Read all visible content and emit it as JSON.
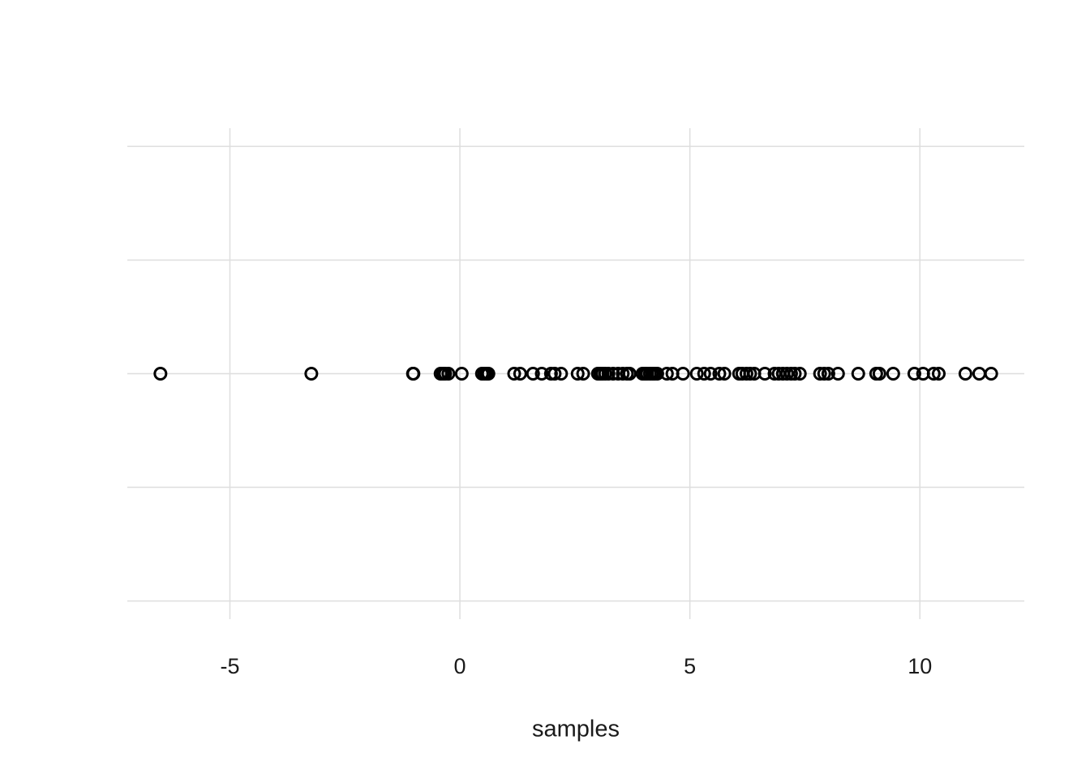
{
  "chart_data": {
    "type": "strip",
    "x_label": "samples",
    "values": [
      -6.51,
      -3.23,
      -1.02,
      -1.01,
      -0.42,
      -0.37,
      -0.32,
      -0.25,
      0.04,
      0.48,
      0.53,
      0.58,
      0.62,
      1.18,
      1.31,
      1.59,
      1.78,
      1.98,
      2.06,
      2.2,
      2.56,
      2.68,
      3.0,
      3.05,
      3.1,
      3.16,
      3.23,
      3.33,
      3.44,
      3.54,
      3.63,
      3.69,
      3.97,
      4.02,
      4.07,
      4.13,
      4.18,
      4.23,
      4.29,
      4.5,
      4.62,
      4.85,
      5.15,
      5.31,
      5.45,
      5.64,
      5.75,
      6.07,
      6.14,
      6.23,
      6.31,
      6.4,
      6.63,
      6.84,
      6.93,
      7.02,
      7.11,
      7.2,
      7.28,
      7.39,
      7.83,
      7.92,
      8.01,
      8.22,
      8.66,
      9.05,
      9.12,
      9.42,
      9.88,
      10.07,
      10.3,
      10.41,
      10.99,
      11.29,
      11.55
    ],
    "color": "#000000",
    "xlim": [
      -7.23,
      12.27
    ],
    "xticks": [
      -5,
      0,
      5,
      10
    ],
    "ylim": [
      -0.054,
      0.054
    ],
    "yticks": [
      -0.05,
      -0.025,
      0,
      0.025,
      0.05
    ],
    "grid": true
  }
}
